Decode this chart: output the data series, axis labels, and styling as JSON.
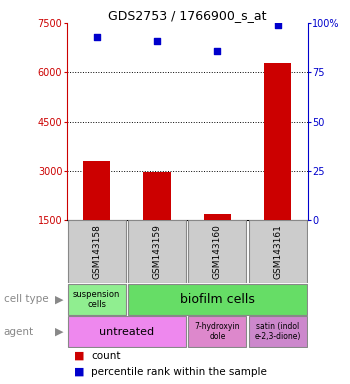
{
  "title": "GDS2753 / 1766900_s_at",
  "samples": [
    "GSM143158",
    "GSM143159",
    "GSM143160",
    "GSM143161"
  ],
  "counts": [
    3300,
    2980,
    1700,
    6300
  ],
  "percentiles": [
    93,
    91,
    86,
    99
  ],
  "ylim_left": [
    1500,
    7500
  ],
  "yticks_left": [
    1500,
    3000,
    4500,
    6000,
    7500
  ],
  "ylim_right": [
    0,
    100
  ],
  "yticks_right": [
    0,
    25,
    50,
    75,
    100
  ],
  "bar_color": "#cc0000",
  "dot_color": "#0000cc",
  "sample_box_color": "#cccccc",
  "cell_type_colors": [
    "#90ee90",
    "#66dd66"
  ],
  "agent_colors": [
    "#ee88ee",
    "#dd88cc",
    "#cc88cc"
  ],
  "left_label_color": "#888888",
  "arrow_color": "#888888"
}
